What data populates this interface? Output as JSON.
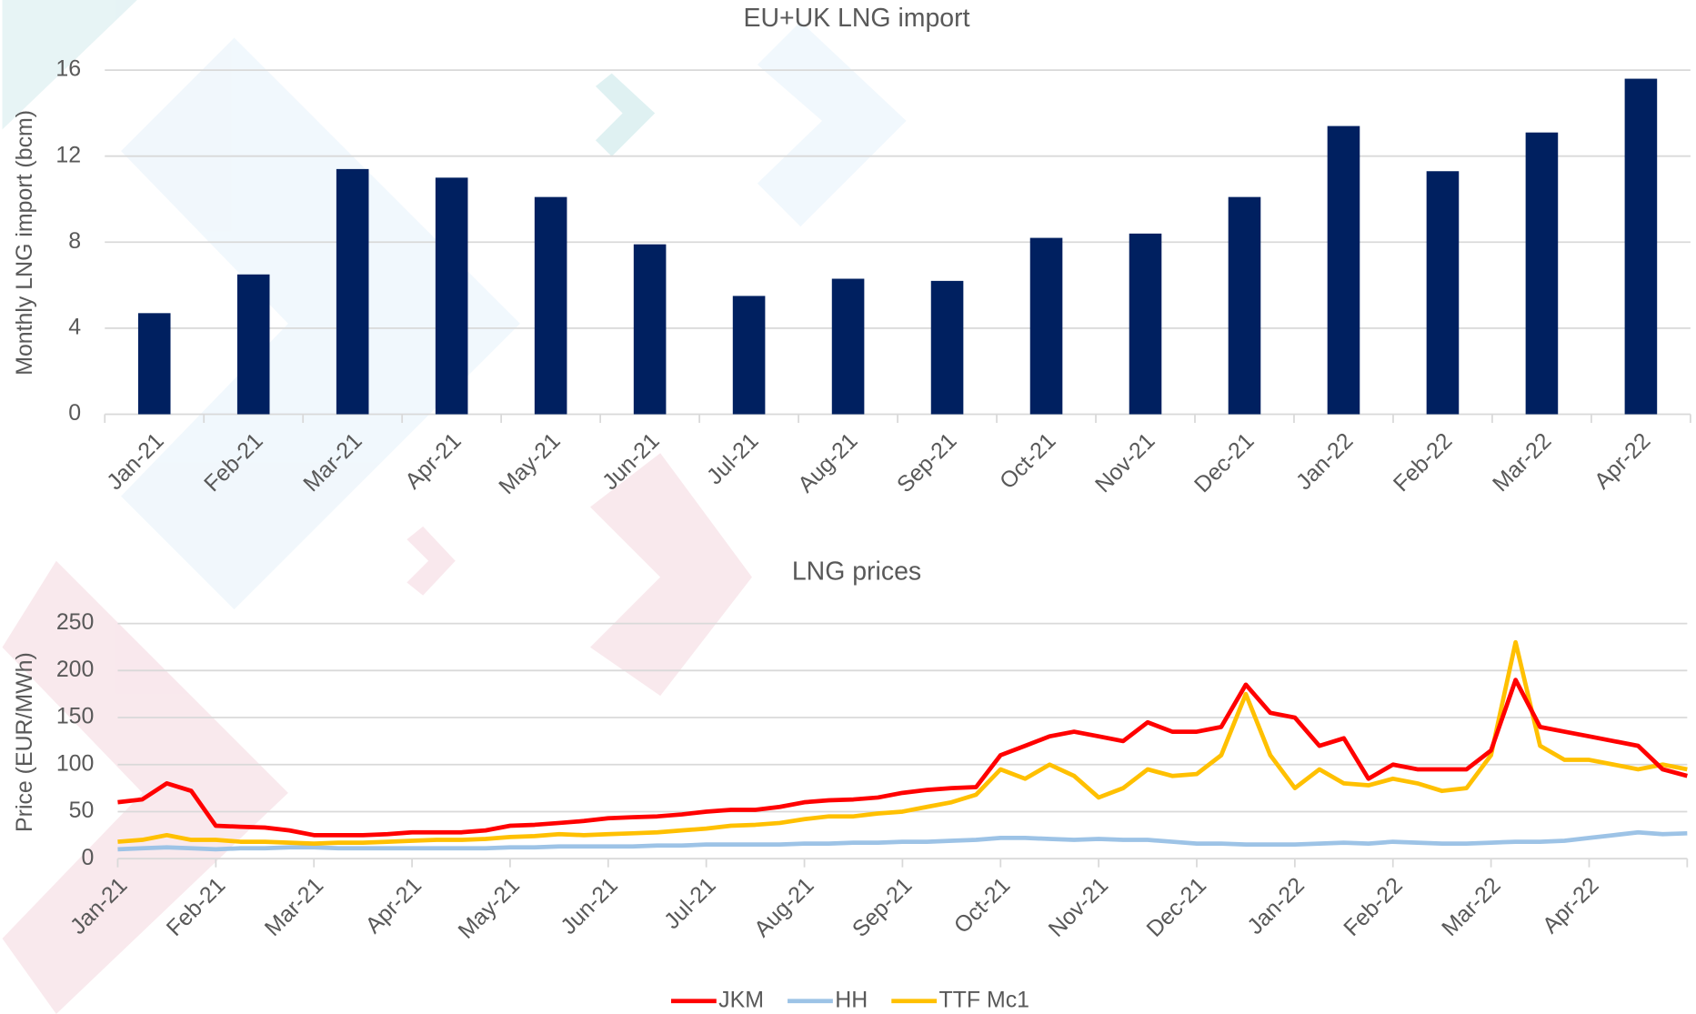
{
  "chart_data": [
    {
      "type": "bar",
      "title": "EU+UK LNG import",
      "y_label": "Monthly LNG import  (bcm)",
      "categories": [
        "Jan-21",
        "Feb-21",
        "Mar-21",
        "Apr-21",
        "May-21",
        "Jun-21",
        "Jul-21",
        "Aug-21",
        "Sep-21",
        "Oct-21",
        "Nov-21",
        "Dec-21",
        "Jan-22",
        "Feb-22",
        "Mar-22",
        "Apr-22"
      ],
      "values": [
        4.7,
        6.5,
        11.4,
        11.0,
        10.1,
        7.9,
        5.5,
        6.3,
        6.2,
        8.2,
        8.4,
        10.1,
        13.4,
        11.3,
        13.1,
        15.6
      ],
      "color": "#002060",
      "ylim": [
        0,
        16
      ],
      "yticks": [
        0,
        4,
        8,
        12,
        16
      ],
      "grid": true
    },
    {
      "type": "line",
      "title": "LNG prices",
      "y_label": "Price (EUR/MWh)",
      "categories": [
        "Jan-21",
        null,
        null,
        null,
        "Feb-21",
        null,
        null,
        null,
        "Mar-21",
        null,
        null,
        null,
        "Apr-21",
        null,
        null,
        null,
        "May-21",
        null,
        null,
        null,
        "Jun-21",
        null,
        null,
        null,
        "Jul-21",
        null,
        null,
        null,
        "Aug-21",
        null,
        null,
        null,
        "Sep-21",
        null,
        null,
        null,
        "Oct-21",
        null,
        null,
        null,
        "Nov-21",
        null,
        null,
        null,
        "Dec-21",
        null,
        null,
        null,
        "Jan-22",
        null,
        null,
        null,
        "Feb-22",
        null,
        null,
        null,
        "Mar-22",
        null,
        null,
        null,
        "Apr-22",
        null,
        null,
        null,
        null
      ],
      "series": [
        {
          "name": "JKM",
          "color": "#ff0000",
          "values": [
            60,
            63,
            80,
            72,
            35,
            34,
            33,
            30,
            25,
            25,
            25,
            26,
            28,
            28,
            28,
            30,
            35,
            36,
            38,
            40,
            43,
            44,
            45,
            47,
            50,
            52,
            52,
            55,
            60,
            62,
            63,
            65,
            70,
            73,
            75,
            76,
            110,
            120,
            130,
            135,
            130,
            125,
            145,
            135,
            135,
            140,
            185,
            155,
            150,
            120,
            128,
            85,
            100,
            95,
            95,
            95,
            115,
            190,
            140,
            135,
            130,
            125,
            120,
            95,
            88
          ]
        },
        {
          "name": "HH",
          "color": "#9dc3e6",
          "values": [
            10,
            11,
            12,
            11,
            10,
            11,
            11,
            12,
            12,
            11,
            11,
            11,
            11,
            11,
            11,
            11,
            12,
            12,
            13,
            13,
            13,
            13,
            14,
            14,
            15,
            15,
            15,
            15,
            16,
            16,
            17,
            17,
            18,
            18,
            19,
            20,
            22,
            22,
            21,
            20,
            21,
            20,
            20,
            18,
            16,
            16,
            15,
            15,
            15,
            16,
            17,
            16,
            18,
            17,
            16,
            16,
            17,
            18,
            18,
            19,
            22,
            25,
            28,
            26,
            27
          ]
        },
        {
          "name": "TTF Mc1",
          "color": "#ffc000",
          "values": [
            18,
            20,
            25,
            20,
            20,
            18,
            18,
            17,
            16,
            17,
            17,
            18,
            19,
            20,
            20,
            21,
            23,
            24,
            26,
            25,
            26,
            27,
            28,
            30,
            32,
            35,
            36,
            38,
            42,
            45,
            45,
            48,
            50,
            55,
            60,
            68,
            95,
            85,
            100,
            88,
            65,
            75,
            95,
            88,
            90,
            110,
            175,
            110,
            75,
            95,
            80,
            78,
            85,
            80,
            72,
            75,
            110,
            230,
            120,
            105,
            105,
            100,
            95,
            100,
            95
          ]
        }
      ],
      "ylim": [
        0,
        250
      ],
      "yticks": [
        0,
        50,
        100,
        150,
        200,
        250
      ],
      "grid": true,
      "legend": "bottom"
    }
  ]
}
